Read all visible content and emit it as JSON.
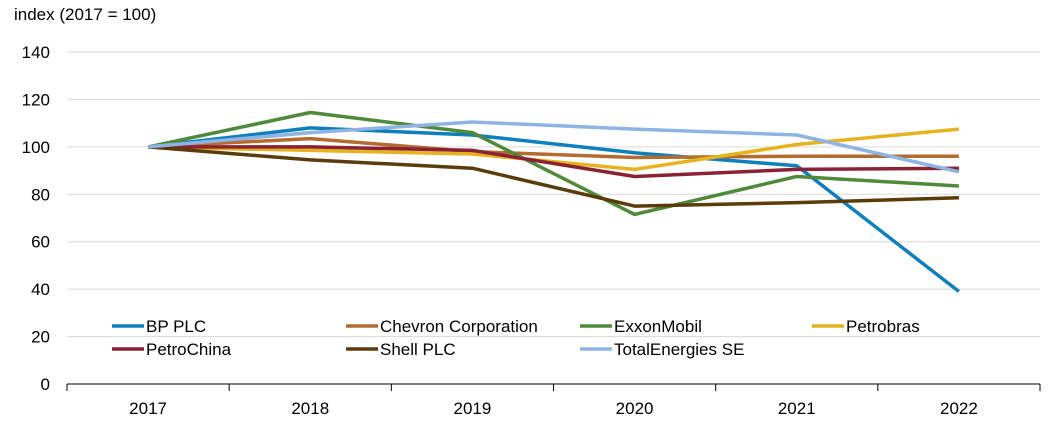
{
  "chart_data": {
    "type": "line",
    "title": "",
    "ylabel": "index (2017 = 100)",
    "xlabel": "",
    "ylim": [
      0,
      140
    ],
    "yticks": [
      0,
      20,
      40,
      60,
      80,
      100,
      120,
      140
    ],
    "x": [
      "2017",
      "2018",
      "2019",
      "2020",
      "2021",
      "2022"
    ],
    "grid": "horizontal",
    "legend_position": "lower-left inside plot",
    "series": [
      {
        "name": "BP PLC",
        "color": "#0d7fbd",
        "values": [
          100,
          108,
          105,
          97.5,
          92,
          39
        ]
      },
      {
        "name": "Chevron Corporation",
        "color": "#b36b2f",
        "values": [
          100,
          103.5,
          98,
          95.5,
          96,
          96
        ]
      },
      {
        "name": "ExxonMobil",
        "color": "#4f8a3a",
        "values": [
          100,
          114.5,
          106,
          71.5,
          87.5,
          83.5
        ]
      },
      {
        "name": "Petrobras",
        "color": "#e6b31e",
        "values": [
          100,
          98.5,
          97,
          90.5,
          101,
          107.5
        ]
      },
      {
        "name": "PetroChina",
        "color": "#8b2234",
        "values": [
          100,
          100,
          98.5,
          87.5,
          90.5,
          91
        ]
      },
      {
        "name": "Shell PLC",
        "color": "#5a3c0a",
        "values": [
          100,
          94.5,
          91,
          75,
          76.5,
          78.5
        ]
      },
      {
        "name": "TotalEnergies SE",
        "color": "#8db4e2",
        "values": [
          100,
          106,
          110.5,
          107.5,
          105,
          89.5
        ]
      }
    ]
  }
}
